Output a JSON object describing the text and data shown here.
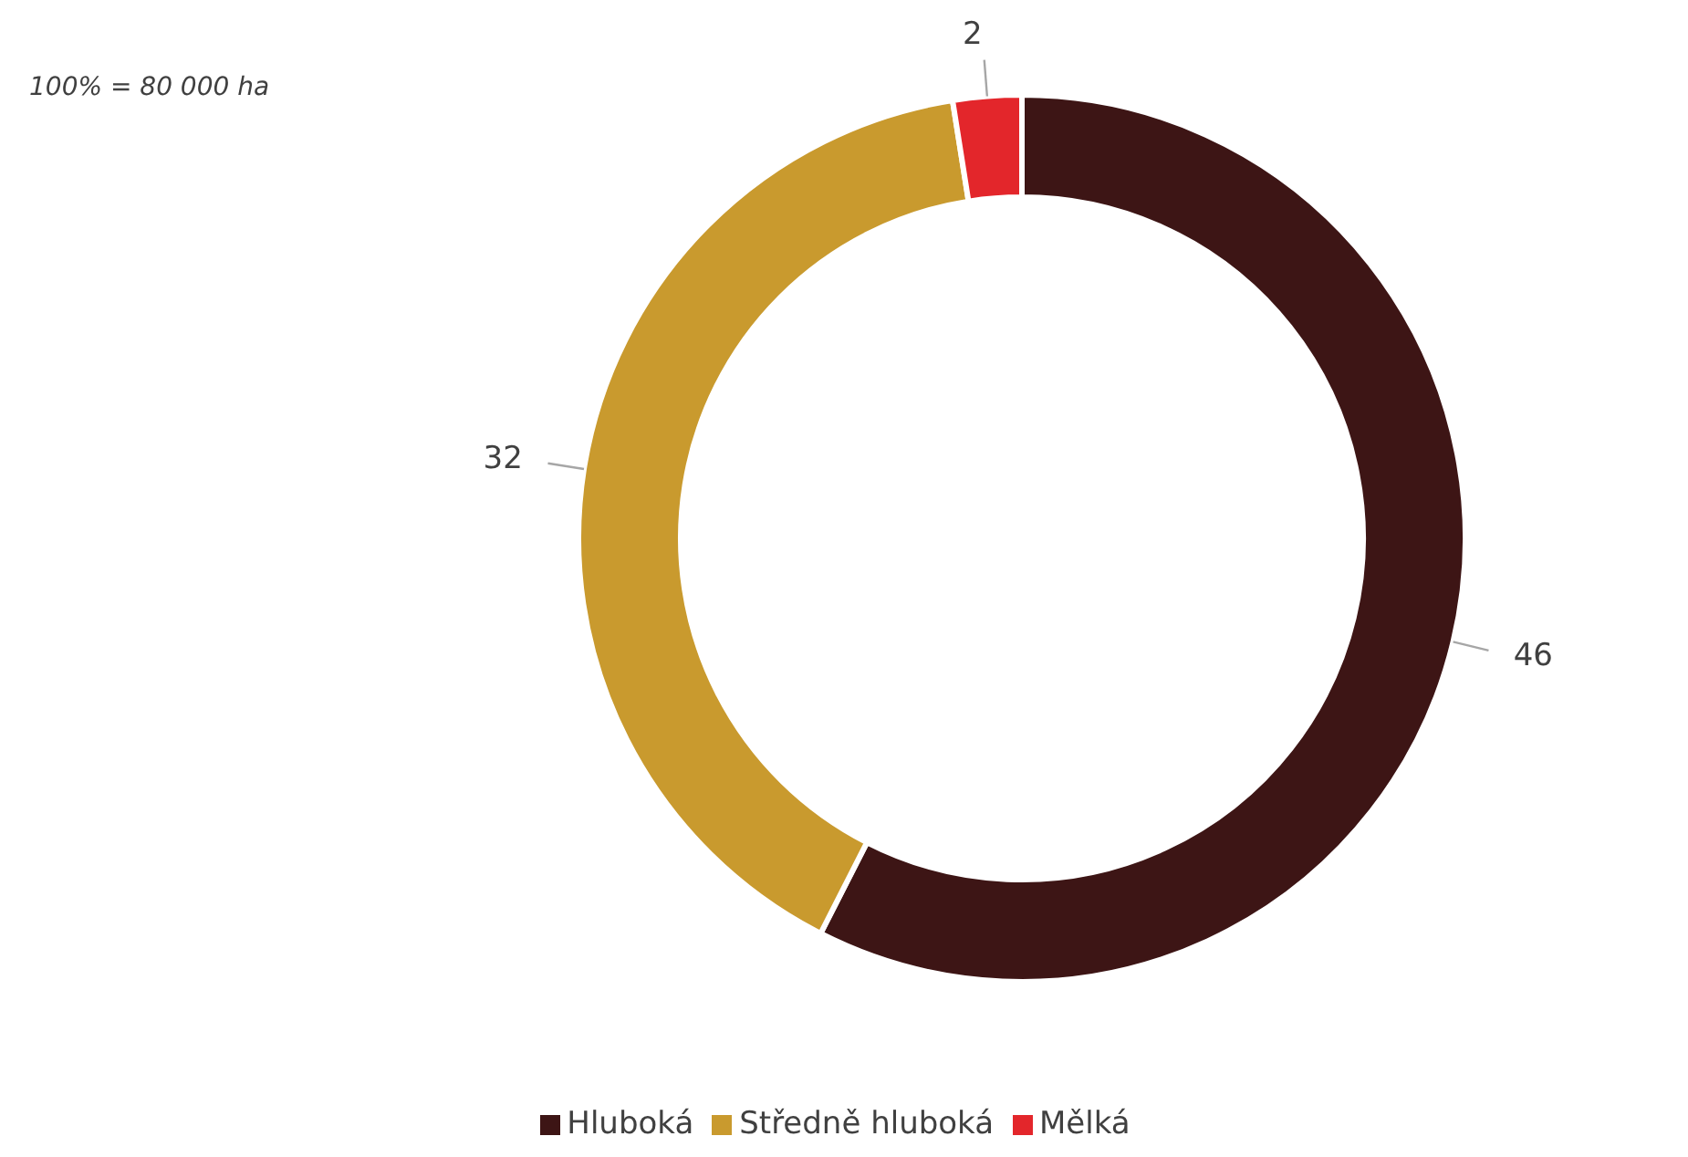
{
  "chart_data": {
    "type": "donut",
    "annotations": [
      "100% = 80 000 ha"
    ],
    "categories": [
      "Hluboká",
      "Středně hluboká",
      "Mělká"
    ],
    "values": [
      46,
      32,
      2
    ],
    "colors": [
      "#3d1515",
      "#c99a2e",
      "#e3262b"
    ],
    "data_labels": true,
    "legend": "bottom"
  }
}
